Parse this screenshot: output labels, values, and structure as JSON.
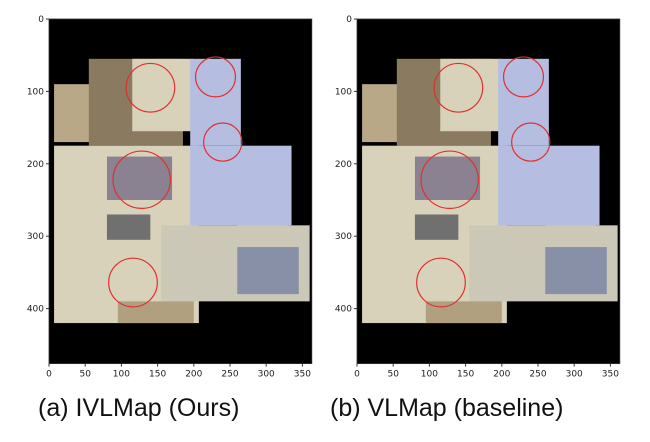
{
  "panels": [
    {
      "caption": "(a) IVLMap (Ours)",
      "circles": [
        [
          140,
          95,
          28
        ],
        [
          230,
          80,
          23
        ],
        [
          240,
          170,
          22
        ],
        [
          128,
          222,
          33
        ],
        [
          116,
          364,
          28
        ]
      ]
    },
    {
      "caption": "(b) VLMap (baseline)",
      "circles": [
        [
          140,
          95,
          28
        ],
        [
          230,
          80,
          23
        ],
        [
          240,
          170,
          22
        ],
        [
          128,
          222,
          33
        ],
        [
          116,
          364,
          28
        ]
      ]
    }
  ],
  "axes": {
    "xticks": [
      0,
      50,
      100,
      150,
      200,
      250,
      300,
      350
    ],
    "yticks": [
      0,
      100,
      200,
      300,
      400
    ],
    "xlim": [
      0,
      363
    ],
    "ylim": [
      476,
      0
    ]
  },
  "colors": {
    "circle": "#e03030",
    "background": "#000000",
    "floor": "#d9d2bb",
    "room": "#b5bde0"
  }
}
